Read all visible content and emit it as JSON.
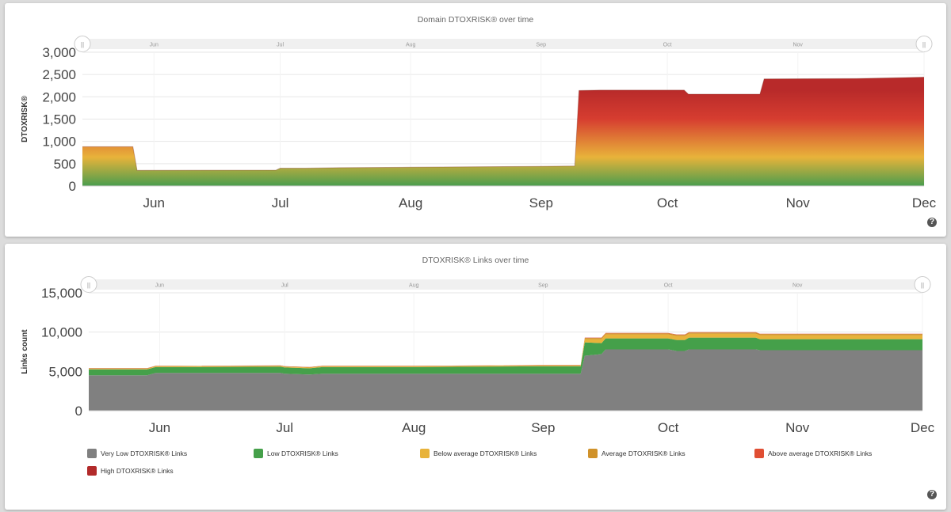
{
  "chart_data": [
    {
      "type": "area",
      "title": "Domain DTOXRISK® over time",
      "ylabel": "DTOXRISK®",
      "xlabel": "",
      "ylim": [
        0,
        3000
      ],
      "yticks": [
        "0",
        "500",
        "1,000",
        "1,500",
        "2,000",
        "2,500",
        "3,000"
      ],
      "month_labels": [
        "Jun",
        "Jul",
        "Aug",
        "Sep",
        "Oct",
        "Nov",
        "Dec"
      ],
      "gradient_colors": [
        "#4a9d4e",
        "#e8b33a",
        "#d63d30",
        "#b82a2a"
      ],
      "x": [
        "2023-05-15",
        "2023-05-27",
        "2023-05-28",
        "2023-06-30",
        "2023-07-01",
        "2023-07-07",
        "2023-07-15",
        "2023-08-01",
        "2023-08-31",
        "2023-09-09",
        "2023-09-10",
        "2023-09-15",
        "2023-10-01",
        "2023-10-05",
        "2023-10-06",
        "2023-10-23",
        "2023-10-24",
        "2023-11-15",
        "2023-12-01"
      ],
      "values": [
        880,
        880,
        350,
        355,
        400,
        400,
        410,
        420,
        440,
        450,
        2140,
        2150,
        2150,
        2150,
        2060,
        2060,
        2400,
        2410,
        2440
      ],
      "brush_labels": [
        "Jun",
        "Jul",
        "Aug",
        "Sep",
        "Oct",
        "Nov",
        "De"
      ]
    },
    {
      "type": "area",
      "title": "DTOXRISK® Links over time",
      "ylabel": "Links count",
      "xlabel": "",
      "ylim": [
        0,
        15000
      ],
      "yticks": [
        "0",
        "5,000",
        "10,000",
        "15,000"
      ],
      "month_labels": [
        "Jun",
        "Jul",
        "Aug",
        "Sep",
        "Oct",
        "Nov",
        "Dec"
      ],
      "brush_labels": [
        "Jun",
        "Jul",
        "Aug",
        "Sep",
        "Oct",
        "Nov",
        "De"
      ],
      "stacked": true,
      "x": [
        "2023-05-15",
        "2023-05-29",
        "2023-05-31",
        "2023-06-30",
        "2023-07-01",
        "2023-07-07",
        "2023-07-10",
        "2023-08-01",
        "2023-08-31",
        "2023-09-10",
        "2023-09-11",
        "2023-09-15",
        "2023-09-16",
        "2023-10-01",
        "2023-10-03",
        "2023-10-05",
        "2023-10-06",
        "2023-10-22",
        "2023-10-23",
        "2023-11-15",
        "2023-11-18",
        "2023-12-01"
      ],
      "series": [
        {
          "name": "Very Low DTOXRISK® Links",
          "color": "#808080",
          "values": [
            4500,
            4500,
            4800,
            4800,
            4700,
            4600,
            4700,
            4700,
            4700,
            4700,
            7000,
            7200,
            7800,
            7800,
            7600,
            7600,
            7800,
            7800,
            7700,
            7700,
            7700,
            7700
          ]
        },
        {
          "name": "Low DTOXRISK® Links",
          "color": "#45a04a",
          "values": [
            750,
            750,
            750,
            800,
            800,
            800,
            850,
            850,
            950,
            950,
            1700,
            1400,
            1400,
            1400,
            1400,
            1400,
            1500,
            1500,
            1400,
            1400,
            1400,
            1400
          ]
        },
        {
          "name": "Below average DTOXRISK® Links",
          "color": "#e8b33a",
          "values": [
            80,
            80,
            80,
            80,
            80,
            80,
            80,
            80,
            80,
            80,
            400,
            500,
            500,
            500,
            500,
            500,
            500,
            500,
            500,
            500,
            500,
            500
          ]
        },
        {
          "name": "Average DTOXRISK® Links",
          "color": "#d0922a",
          "values": [
            60,
            60,
            60,
            60,
            60,
            60,
            60,
            60,
            60,
            60,
            150,
            150,
            150,
            150,
            150,
            150,
            150,
            150,
            150,
            150,
            150,
            150
          ]
        },
        {
          "name": "Above average DTOXRISK® Links",
          "color": "#e04e33",
          "values": [
            10,
            10,
            10,
            10,
            10,
            10,
            10,
            10,
            10,
            10,
            40,
            40,
            40,
            40,
            40,
            40,
            40,
            40,
            40,
            40,
            40,
            40
          ]
        },
        {
          "name": "High DTOXRISK® Links",
          "color": "#b22a2a",
          "values": [
            5,
            5,
            5,
            5,
            5,
            5,
            5,
            5,
            5,
            5,
            10,
            10,
            10,
            10,
            10,
            10,
            10,
            10,
            10,
            10,
            10,
            10
          ]
        }
      ],
      "legend_position": "bottom"
    }
  ],
  "help_icon": {
    "label": "?",
    "icon": "question-circle-icon",
    "color": "#555555"
  }
}
